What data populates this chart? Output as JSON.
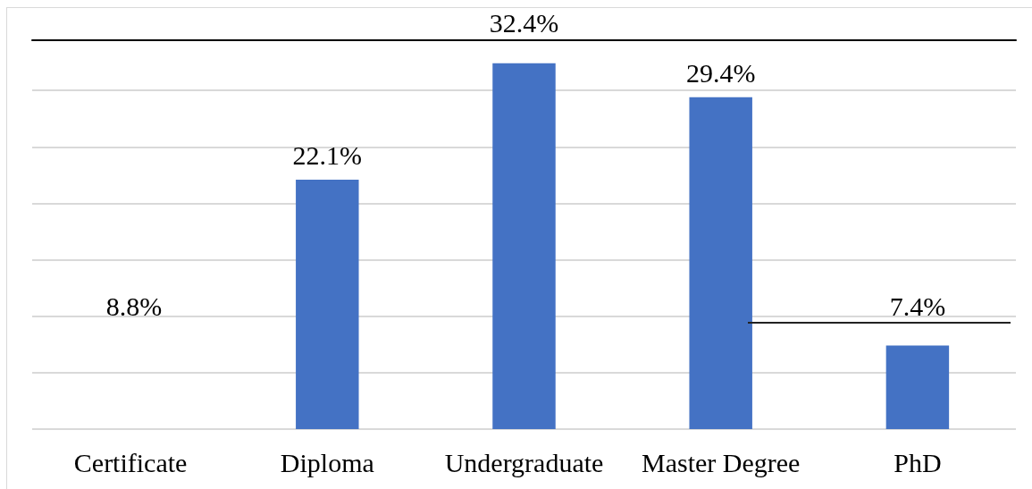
{
  "chart_data": {
    "type": "bar",
    "categories": [
      "Certificate",
      "Diploma",
      "Undergraduate",
      "Master Degree",
      "PhD"
    ],
    "values": [
      null,
      22.1,
      32.4,
      29.4,
      7.4
    ],
    "color": "#4472c4",
    "value_labels": [
      null,
      "22.1%",
      "32.4%",
      "29.4%",
      "7.4%"
    ],
    "annotations": [
      "8.8%"
    ],
    "yticks": [
      {
        "value": 0,
        "label": null
      },
      {
        "value": 5,
        "label": null
      },
      {
        "value": 10,
        "label": null
      },
      {
        "value": 15,
        "label": null
      },
      {
        "value": 20,
        "label": null
      },
      {
        "value": 25,
        "label": null
      },
      {
        "value": 30,
        "label": null
      }
    ],
    "grid": "y",
    "tick_labels": "x",
    "ref_lines": [
      {
        "axis": "y",
        "value": 34.5,
        "color": "#000000"
      }
    ]
  }
}
